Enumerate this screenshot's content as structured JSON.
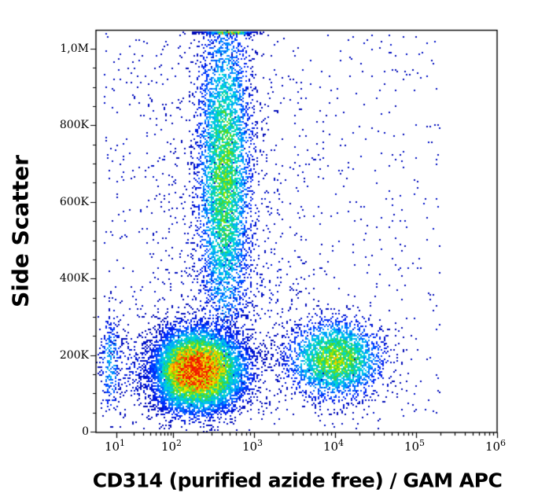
{
  "window": {
    "background": "#ffffff"
  },
  "chart_data": {
    "type": "scatter",
    "variant": "flow-cytometry-density-dot-plot",
    "title": "",
    "xlabel": "CD314 (purified azide free) / GAM APC",
    "ylabel": "Side Scatter",
    "legend": "none",
    "grid": false,
    "x_scale": "biexponential-log",
    "x_tick_base": "10",
    "x_tick_exponents": [
      1,
      2,
      3,
      4,
      5,
      6
    ],
    "x_minor_ticks": "multiples 2-9 of each decade",
    "x_range": [
      5,
      1000000
    ],
    "y_scale": "linear",
    "y_range": [
      0,
      1048000
    ],
    "y_minor_tick_step": 50000,
    "y_ticks": [
      {
        "label": "0",
        "value": 0
      },
      {
        "label": "200K",
        "value": 200000
      },
      {
        "label": "400K",
        "value": 400000
      },
      {
        "label": "600K",
        "value": 600000
      },
      {
        "label": "800K",
        "value": 800000
      },
      {
        "label": "1,0M",
        "value": 1000000
      }
    ],
    "density_colormap": [
      [
        0.0,
        "#0000A0"
      ],
      [
        0.15,
        "#0028FF"
      ],
      [
        0.3,
        "#00A8FF"
      ],
      [
        0.42,
        "#00E0D0"
      ],
      [
        0.52,
        "#22D060"
      ],
      [
        0.62,
        "#80E400"
      ],
      [
        0.72,
        "#EEEE00"
      ],
      [
        0.82,
        "#FFA000"
      ],
      [
        1.0,
        "#F01800"
      ]
    ],
    "seed": 42,
    "populations": [
      {
        "name": "background-debris",
        "shape": "uniform",
        "x_log_range": [
          0.78,
          5.3
        ],
        "y_range": [
          8000,
          1040000
        ],
        "count": 900,
        "peak_density": 0.05
      },
      {
        "name": "diffuse-mid-scatter",
        "shape": "gaussian",
        "center_x": 560,
        "center_y": 450000,
        "sigma_log_x": 0.5,
        "sigma_y": 260000,
        "count": 700,
        "peak_density": 0.1
      },
      {
        "name": "left-low-scatter",
        "shape": "gaussian",
        "center_x": 30,
        "center_y": 170000,
        "sigma_log_x": 0.35,
        "sigma_y": 60000,
        "count": 350,
        "peak_density": 0.12
      },
      {
        "name": "left-edge-band",
        "shape": "gaussian",
        "center_x": 8,
        "center_y": 180000,
        "sigma_log_x": 0.1,
        "sigma_y": 70000,
        "count": 250,
        "peak_density": 0.3,
        "clamp_left": true
      },
      {
        "name": "granulocyte-streak",
        "shape": "gaussian",
        "center_x": 430,
        "center_y": 670000,
        "sigma_log_x": 0.17,
        "sigma_y": 230000,
        "count": 5200,
        "peak_density": 0.55,
        "pileup_top": true
      },
      {
        "name": "top-edge-pileup",
        "shape": "gaussian",
        "center_x": 480,
        "center_y": 1045000,
        "sigma_log_x": 0.14,
        "sigma_y": 4000,
        "count": 260,
        "peak_density": 0.8,
        "pileup_top": true
      },
      {
        "name": "cd314-positive-population",
        "shape": "gaussian",
        "center_x": 10000,
        "center_y": 190000,
        "sigma_log_x": 0.3,
        "sigma_y": 52000,
        "count": 3000,
        "peak_density": 0.62
      },
      {
        "name": "negative-main-population",
        "shape": "gaussian",
        "center_x": 195,
        "center_y": 160000,
        "sigma_log_x": 0.3,
        "sigma_y": 54000,
        "count": 9500,
        "peak_density": 1.0
      }
    ]
  }
}
